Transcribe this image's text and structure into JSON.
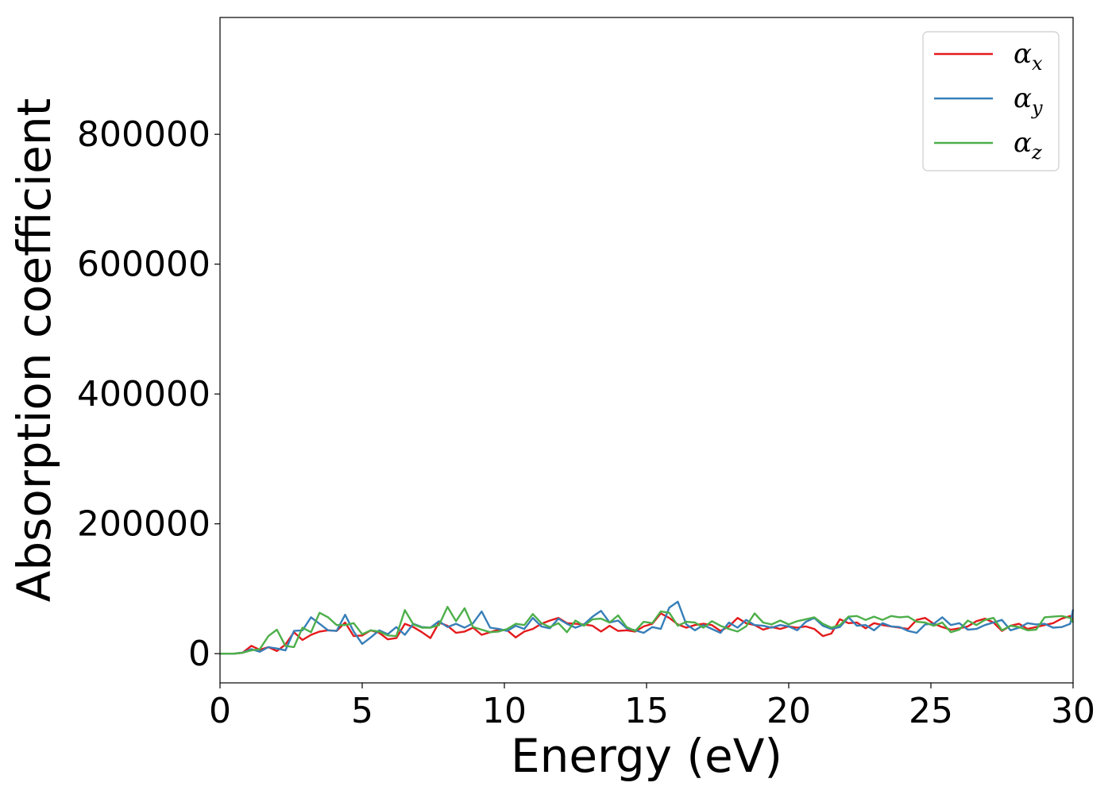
{
  "chart_data": {
    "type": "line",
    "title": "",
    "xlabel": "Energy (eV)",
    "ylabel": "Absorption coefficient",
    "xlim": [
      0,
      30
    ],
    "ylim": [
      -45000,
      980000
    ],
    "xticks": [
      0,
      5,
      10,
      15,
      20,
      25,
      30
    ],
    "xtick_labels": [
      "0",
      "5",
      "10",
      "15",
      "20",
      "25",
      "30"
    ],
    "yticks": [
      0,
      200000,
      400000,
      600000,
      800000
    ],
    "ytick_labels": [
      "0",
      "200000",
      "400000",
      "600000",
      "800000"
    ],
    "grid": false,
    "legend_position": "top-right",
    "x": [
      0,
      0.5,
      0.8,
      1.1,
      1.4,
      1.7,
      2.0,
      2.3,
      2.6,
      2.9,
      3.2,
      3.5,
      3.8,
      4.1,
      4.4,
      4.7,
      5.0,
      5.3,
      5.6,
      5.9,
      6.2,
      6.5,
      6.8,
      7.1,
      7.4,
      7.7,
      8.0,
      8.3,
      8.6,
      8.9,
      9.2,
      9.5,
      9.8,
      10.1,
      10.4,
      10.7,
      11.0,
      11.3,
      11.6,
      11.9,
      12.2,
      12.5,
      12.8,
      13.1,
      13.4,
      13.7,
      14.0,
      14.3,
      14.6,
      14.9,
      15.2,
      15.5,
      15.8,
      16.1,
      16.4,
      16.7,
      17.0,
      17.3,
      17.6,
      17.9,
      18.2,
      18.5,
      18.8,
      19.1,
      19.4,
      19.7,
      20.0,
      20.3,
      20.6,
      20.9,
      21.2,
      21.5,
      21.8,
      22.1,
      22.4,
      22.7,
      23.0,
      23.3,
      23.6,
      23.9,
      24.2,
      24.5,
      24.8,
      25.1,
      25.4,
      25.7,
      26.0,
      26.3,
      26.6,
      26.9,
      27.2,
      27.5,
      27.8,
      28.1,
      28.4,
      28.7,
      29.0,
      29.3,
      29.6,
      29.9,
      30
    ],
    "series": [
      {
        "name": "α",
        "subscript": "x",
        "color": "#e41a1c",
        "values": [
          0,
          0,
          1500,
          12000,
          6000,
          10000,
          4000,
          14000,
          33000,
          21000,
          29000,
          34000,
          36000,
          35000,
          48000,
          27000,
          28000,
          36000,
          32000,
          22000,
          24000,
          46000,
          41000,
          33000,
          24000,
          48000,
          43000,
          32000,
          34000,
          40000,
          29000,
          33000,
          37000,
          36000,
          25000,
          34000,
          38000,
          46000,
          51000,
          55000,
          47000,
          46000,
          45000,
          43000,
          34000,
          43000,
          35000,
          36000,
          34000,
          42000,
          46000,
          62000,
          55000,
          45000,
          40000,
          44000,
          46000,
          44000,
          35000,
          42000,
          55000,
          47000,
          44000,
          37000,
          41000,
          38000,
          42000,
          40000,
          42000,
          38000,
          27000,
          31000,
          53000,
          47000,
          48000,
          39000,
          47000,
          44000,
          42000,
          40000,
          38000,
          52000,
          55000,
          46000,
          41000,
          37000,
          39000,
          42000,
          50000,
          54000,
          48000,
          35000,
          43000,
          46000,
          38000,
          41000,
          44000,
          47000,
          54000,
          58000,
          53000
        ]
      },
      {
        "name": "α",
        "subscript": "y",
        "color": "#377eb8",
        "values": [
          0,
          0,
          1500,
          7000,
          3000,
          10000,
          8000,
          5000,
          35000,
          36000,
          56000,
          46000,
          36000,
          35000,
          60000,
          34000,
          15000,
          25000,
          36000,
          30000,
          41000,
          29000,
          46000,
          41000,
          40000,
          50000,
          41000,
          46000,
          40000,
          47000,
          65000,
          40000,
          38000,
          35000,
          43000,
          38000,
          55000,
          42000,
          39000,
          54000,
          46000,
          40000,
          45000,
          57000,
          66000,
          48000,
          51000,
          39000,
          36000,
          32000,
          41000,
          38000,
          71000,
          80000,
          45000,
          36000,
          44000,
          38000,
          32000,
          48000,
          40000,
          52000,
          44000,
          43000,
          40000,
          44000,
          42000,
          36000,
          49000,
          55000,
          43000,
          38000,
          41000,
          56000,
          43000,
          44000,
          36000,
          47000,
          42000,
          41000,
          35000,
          32000,
          45000,
          46000,
          56000,
          44000,
          47000,
          37000,
          38000,
          44000,
          48000,
          52000,
          36000,
          40000,
          47000,
          45000,
          46000,
          40000,
          41000,
          46000,
          68000
        ]
      },
      {
        "name": "α",
        "subscript": "z",
        "color": "#4daf4a",
        "values": [
          0,
          0,
          1500,
          5000,
          7000,
          27000,
          37000,
          12000,
          10000,
          40000,
          33000,
          63000,
          56000,
          44000,
          44000,
          47000,
          30000,
          36000,
          34000,
          28000,
          27000,
          67000,
          45000,
          40000,
          40000,
          44000,
          72000,
          50000,
          70000,
          41000,
          37000,
          33000,
          34000,
          38000,
          46000,
          44000,
          61000,
          47000,
          41000,
          47000,
          33000,
          51000,
          43000,
          53000,
          54000,
          48000,
          59000,
          41000,
          35000,
          49000,
          47000,
          65000,
          63000,
          43000,
          49000,
          48000,
          40000,
          50000,
          43000,
          38000,
          34000,
          42000,
          62000,
          48000,
          45000,
          51000,
          45000,
          50000,
          53000,
          56000,
          46000,
          40000,
          44000,
          57000,
          58000,
          52000,
          57000,
          52000,
          58000,
          56000,
          57000,
          49000,
          48000,
          43000,
          48000,
          33000,
          37000,
          51000,
          44000,
          52000,
          55000,
          36000,
          43000,
          41000,
          36000,
          37000,
          56000,
          57000,
          58000,
          55000,
          48000
        ]
      }
    ]
  }
}
